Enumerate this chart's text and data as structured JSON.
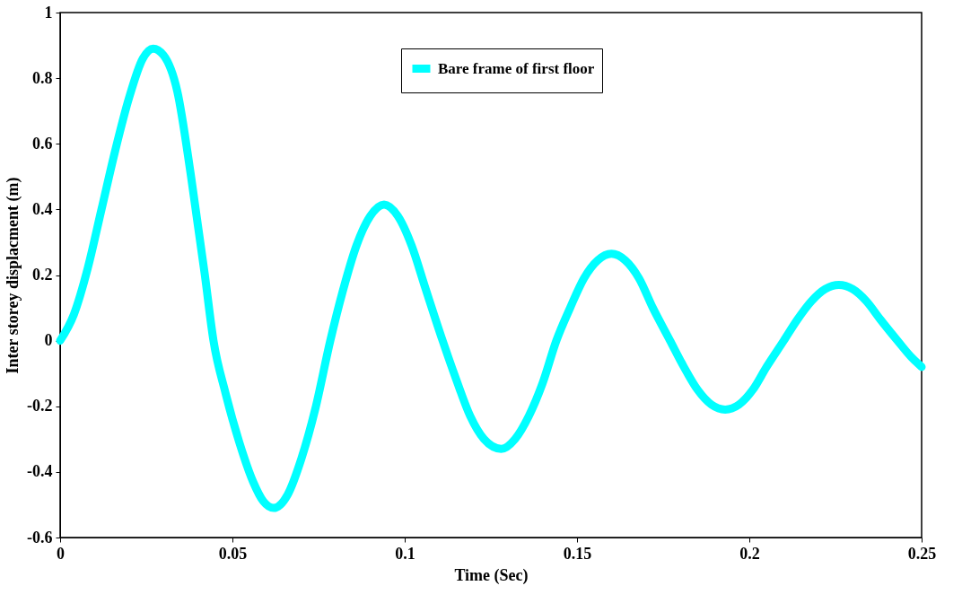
{
  "chart_data": {
    "type": "line",
    "xlabel": "Time (Sec)",
    "ylabel": "Inter storey displacment (m)",
    "xlim": [
      0,
      0.25
    ],
    "ylim": [
      -0.6,
      1
    ],
    "xticks": [
      0,
      0.05,
      0.1,
      0.15,
      0.2,
      0.25
    ],
    "yticks": [
      -0.6,
      -0.4,
      -0.2,
      0,
      0.2,
      0.4,
      0.6,
      0.8,
      1
    ],
    "grid": false,
    "legend": "top",
    "line_style": "solid",
    "x": [
      0,
      0.004,
      0.008,
      0.012,
      0.016,
      0.02,
      0.024,
      0.027,
      0.03,
      0.034,
      0.038,
      0.042,
      0.0445,
      0.048,
      0.052,
      0.056,
      0.059,
      0.062,
      0.066,
      0.07,
      0.074,
      0.0784,
      0.082,
      0.086,
      0.09,
      0.094,
      0.098,
      0.102,
      0.106,
      0.111,
      0.115,
      0.119,
      0.123,
      0.128,
      0.132,
      0.136,
      0.14,
      0.144,
      0.148,
      0.152,
      0.156,
      0.16,
      0.164,
      0.168,
      0.172,
      0.177,
      0.181,
      0.185,
      0.189,
      0.193,
      0.197,
      0.201,
      0.205,
      0.21,
      0.214,
      0.218,
      0.222,
      0.226,
      0.23,
      0.234,
      0.238,
      0.243,
      0.247,
      0.25
    ],
    "series": [
      {
        "name": "Bare frame of first floor",
        "color": "#00ffff",
        "values": [
          0,
          0.08,
          0.22,
          0.4,
          0.58,
          0.74,
          0.86,
          0.89,
          0.87,
          0.76,
          0.5,
          0.2,
          0,
          -0.16,
          -0.31,
          -0.43,
          -0.49,
          -0.51,
          -0.47,
          -0.36,
          -0.21,
          0,
          0.15,
          0.29,
          0.38,
          0.415,
          0.38,
          0.29,
          0.16,
          0,
          -0.12,
          -0.23,
          -0.3,
          -0.33,
          -0.3,
          -0.23,
          -0.13,
          0,
          0.1,
          0.19,
          0.245,
          0.265,
          0.245,
          0.19,
          0.1,
          0,
          -0.08,
          -0.15,
          -0.195,
          -0.21,
          -0.195,
          -0.15,
          -0.08,
          0,
          0.065,
          0.12,
          0.157,
          0.17,
          0.157,
          0.12,
          0.065,
          0,
          -0.05,
          -0.08
        ]
      }
    ]
  }
}
